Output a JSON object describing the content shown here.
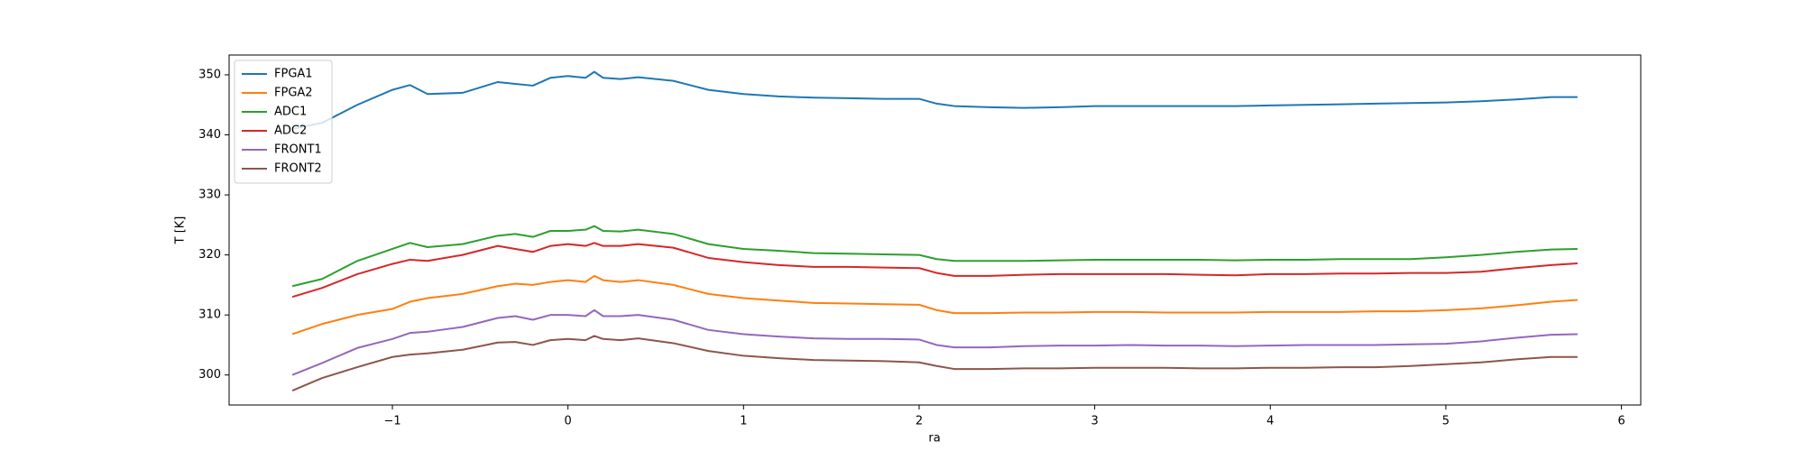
{
  "chart_data": {
    "type": "line",
    "x_label": "ra",
    "y_label": "T [K]",
    "x": [
      -1.57,
      -1.4,
      -1.2,
      -1.0,
      -0.9,
      -0.8,
      -0.6,
      -0.4,
      -0.3,
      -0.2,
      -0.1,
      0,
      0.1,
      0.15,
      0.2,
      0.3,
      0.4,
      0.6,
      0.8,
      1.0,
      1.2,
      1.4,
      1.6,
      1.8,
      2.0,
      2.1,
      2.2,
      2.4,
      2.6,
      2.8,
      3.0,
      3.2,
      3.4,
      3.6,
      3.8,
      4.0,
      4.2,
      4.4,
      4.6,
      4.8,
      5.0,
      5.2,
      5.4,
      5.6,
      5.75
    ],
    "series": [
      {
        "name": "FPGA1",
        "color": "#1f77b4",
        "values": [
          341,
          342,
          345,
          347.5,
          348.3,
          346.8,
          347,
          348.8,
          348.5,
          348.2,
          349.5,
          349.8,
          349.5,
          350.5,
          349.5,
          349.3,
          349.6,
          349,
          347.5,
          346.8,
          346.4,
          346.2,
          346.1,
          346,
          346,
          345.2,
          344.8,
          344.6,
          344.5,
          344.6,
          344.8,
          344.8,
          344.8,
          344.8,
          344.8,
          344.9,
          345,
          345.1,
          345.2,
          345.3,
          345.4,
          345.6,
          345.9,
          346.3,
          346.3
        ]
      },
      {
        "name": "FPGA2",
        "color": "#ff7f0e",
        "values": [
          306.8,
          308.5,
          310,
          311,
          312.2,
          312.8,
          313.5,
          314.8,
          315.2,
          315,
          315.5,
          315.8,
          315.5,
          316.5,
          315.8,
          315.5,
          315.8,
          315,
          313.5,
          312.8,
          312.4,
          312,
          311.9,
          311.8,
          311.7,
          310.8,
          310.3,
          310.3,
          310.4,
          310.4,
          310.5,
          310.5,
          310.4,
          310.4,
          310.4,
          310.5,
          310.5,
          310.5,
          310.6,
          310.6,
          310.8,
          311.1,
          311.6,
          312.2,
          312.5
        ]
      },
      {
        "name": "ADC1",
        "color": "#2ca02c",
        "values": [
          314.8,
          316,
          319,
          321,
          322,
          321.3,
          321.8,
          323.2,
          323.5,
          323,
          324,
          324,
          324.2,
          324.8,
          324,
          323.9,
          324.2,
          323.5,
          321.8,
          321,
          320.7,
          320.3,
          320.2,
          320.1,
          320,
          319.3,
          319,
          319,
          319,
          319.1,
          319.2,
          319.2,
          319.2,
          319.2,
          319.1,
          319.2,
          319.2,
          319.3,
          319.3,
          319.3,
          319.6,
          320,
          320.5,
          320.9,
          321
        ]
      },
      {
        "name": "ADC2",
        "color": "#d62728",
        "values": [
          313,
          314.5,
          316.8,
          318.5,
          319.2,
          319,
          320,
          321.5,
          321,
          320.5,
          321.5,
          321.8,
          321.5,
          322,
          321.5,
          321.5,
          321.8,
          321.2,
          319.5,
          318.8,
          318.3,
          318,
          318,
          317.9,
          317.8,
          317,
          316.5,
          316.5,
          316.7,
          316.8,
          316.8,
          316.8,
          316.8,
          316.7,
          316.6,
          316.8,
          316.8,
          316.9,
          316.9,
          317,
          317,
          317.2,
          317.8,
          318.3,
          318.6
        ]
      },
      {
        "name": "FRONT1",
        "color": "#9467bd",
        "values": [
          300,
          302,
          304.5,
          306,
          307,
          307.2,
          308,
          309.5,
          309.8,
          309.2,
          310,
          310,
          309.8,
          310.8,
          309.8,
          309.8,
          310,
          309.2,
          307.5,
          306.8,
          306.4,
          306.1,
          306,
          306,
          305.9,
          305,
          304.6,
          304.6,
          304.8,
          304.9,
          304.9,
          305,
          304.9,
          304.9,
          304.8,
          304.9,
          305,
          305,
          305,
          305.1,
          305.2,
          305.6,
          306.2,
          306.7,
          306.8
        ]
      },
      {
        "name": "FRONT2",
        "color": "#8c564b",
        "values": [
          297.4,
          299.5,
          301.3,
          303,
          303.4,
          303.6,
          304.2,
          305.4,
          305.5,
          305,
          305.8,
          306,
          305.8,
          306.5,
          306,
          305.8,
          306.1,
          305.3,
          304,
          303.2,
          302.8,
          302.5,
          302.4,
          302.3,
          302.1,
          301.5,
          301,
          301,
          301.1,
          301.1,
          301.2,
          301.2,
          301.2,
          301.1,
          301.1,
          301.2,
          301.2,
          301.3,
          301.3,
          301.5,
          301.8,
          302.1,
          302.6,
          303,
          303
        ]
      }
    ],
    "xlim": [
      -1.93,
      6.11
    ],
    "xticks": [
      {
        "value": -1,
        "label": "−1"
      },
      0,
      1,
      2,
      3,
      4,
      5,
      6
    ],
    "ylim": [
      295,
      353.3
    ],
    "yticks": [
      300,
      310,
      320,
      330,
      340,
      350
    ],
    "legend": "upper left"
  }
}
